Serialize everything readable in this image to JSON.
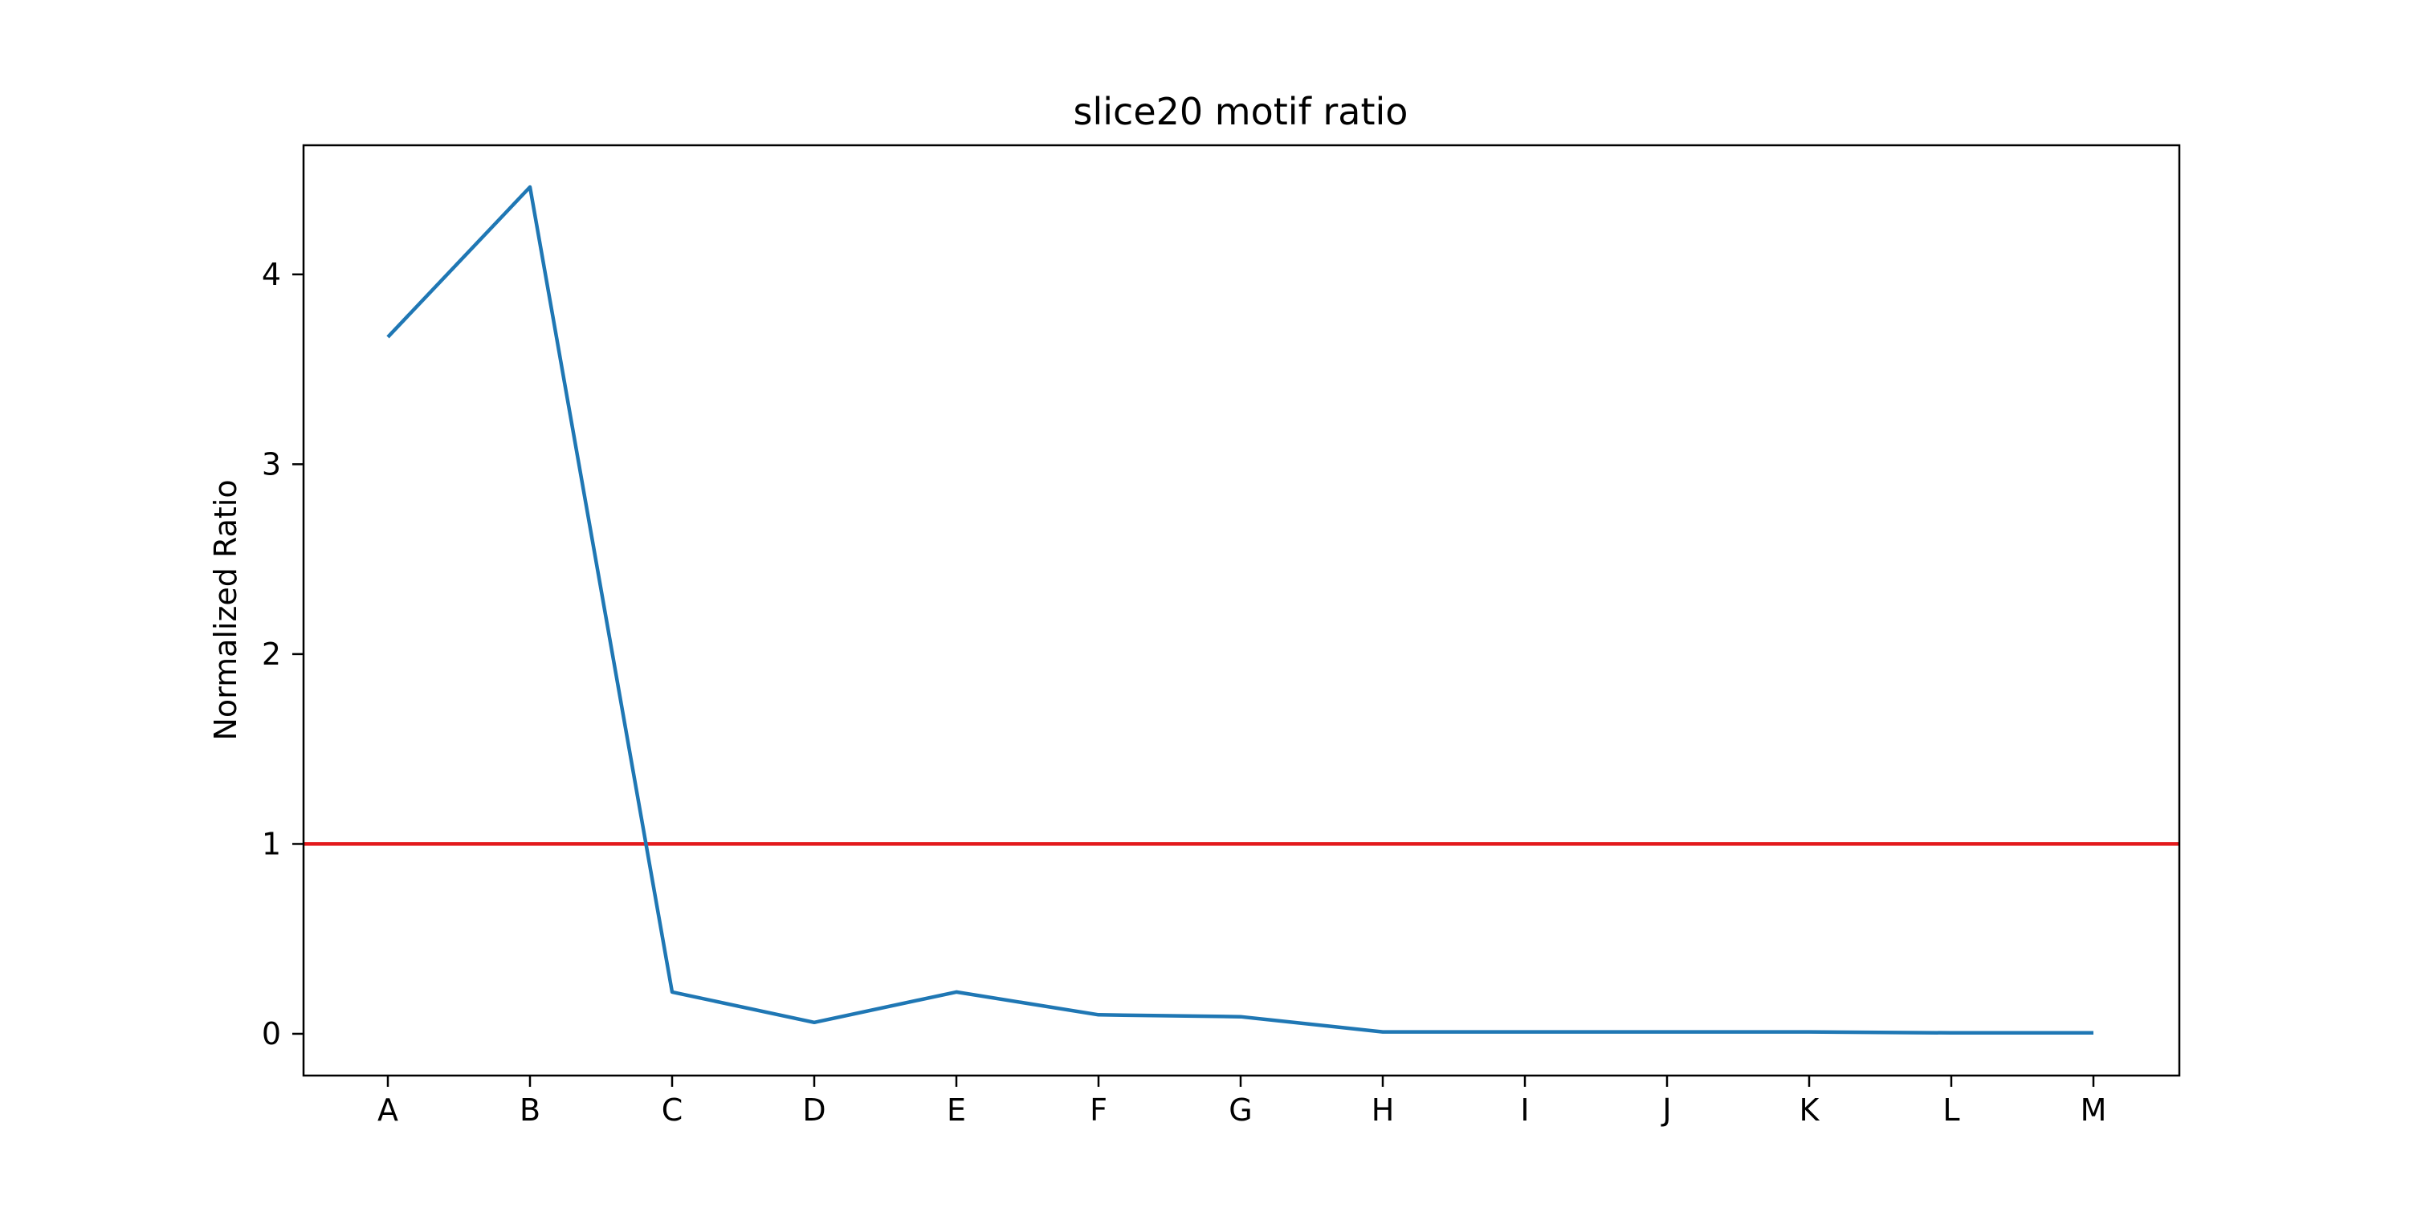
{
  "chart_data": {
    "type": "line",
    "title": "slice20 motif ratio",
    "xlabel": "",
    "ylabel": "Normalized Ratio",
    "categories": [
      "A",
      "B",
      "C",
      "D",
      "E",
      "F",
      "G",
      "H",
      "I",
      "J",
      "K",
      "L",
      "M"
    ],
    "series": [
      {
        "values": [
          3.67,
          4.46,
          0.22,
          0.06,
          0.22,
          0.1,
          0.09,
          0.01,
          0.01,
          0.01,
          0.01,
          0.005,
          0.005
        ],
        "color": "#1f77b4"
      }
    ],
    "reference_line": {
      "y": 1,
      "color": "#e31a1c"
    },
    "ylim": [
      -0.22,
      4.68
    ],
    "yticks": [
      0,
      1,
      2,
      3,
      4
    ],
    "grid": false,
    "legend": "none"
  }
}
